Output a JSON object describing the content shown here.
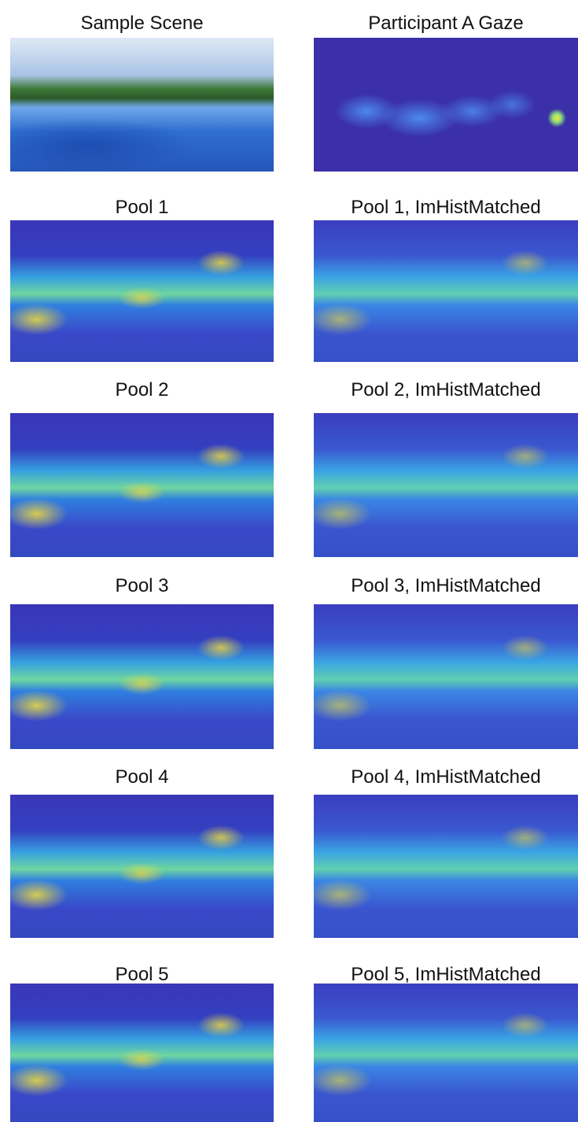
{
  "panels": [
    {
      "title": "Sample Scene"
    },
    {
      "title": "Participant A Gaze"
    },
    {
      "title": "Pool 1"
    },
    {
      "title": "Pool 1, ImHistMatched"
    },
    {
      "title": "Pool 2"
    },
    {
      "title": "Pool 2, ImHistMatched"
    },
    {
      "title": "Pool 3"
    },
    {
      "title": "Pool 3, ImHistMatched"
    },
    {
      "title": "Pool 4"
    },
    {
      "title": "Pool 4, ImHistMatched"
    },
    {
      "title": "Pool 5"
    },
    {
      "title": "Pool 5, ImHistMatched"
    }
  ]
}
